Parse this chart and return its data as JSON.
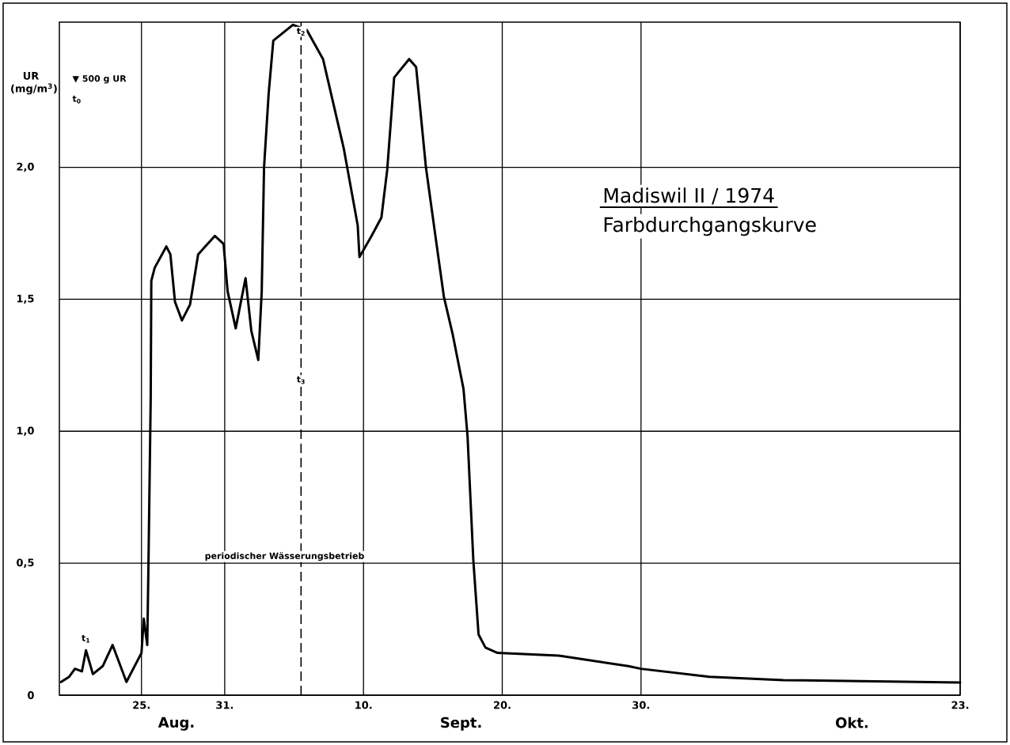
{
  "chart_data": {
    "type": "line",
    "title": "Madiswil II / 1974",
    "subtitle": "Farbdurchgangskurve",
    "ylabel": "UR (mg/m$^{3}$)",
    "x": [
      "1974-08-19T05:00",
      "1974-08-19T19:00",
      "1974-08-20T05:00",
      "1974-08-20T17:00",
      "1974-08-21T00:00",
      "1974-08-21T12:00",
      "1974-08-22T05:00",
      "1974-08-22T22:00",
      "1974-08-23T22:00",
      "1974-08-25T00:00",
      "1974-08-25T04:00",
      "1974-08-25T10:00",
      "1974-08-25T12:00",
      "1974-08-25T16:00",
      "1974-08-25T17:00",
      "1974-08-25T23:00",
      "1974-08-26T19:00",
      "1974-08-27T02:00",
      "1974-08-27T10:00",
      "1974-08-27T22:00",
      "1974-08-28T12:00",
      "1974-08-29T02:00",
      "1974-08-30T07:00",
      "1974-08-30T22:00",
      "1974-08-31T05:00",
      "1974-08-31T19:00",
      "1974-09-01T12:00",
      "1974-09-01T22:00",
      "1974-09-02T10:00",
      "1974-09-02T16:00",
      "1974-09-02T20:00",
      "1974-09-03T04:00",
      "1974-09-03T12:00",
      "1974-09-04T22:00",
      "1974-09-05T22:00",
      "1974-09-07T02:00",
      "1974-09-08T14:00",
      "1974-09-09T14:00",
      "1974-09-09T17:00",
      "1974-09-10T14:00",
      "1974-09-11T07:00",
      "1974-09-11T17:00",
      "1974-09-12T05:00",
      "1974-09-13T07:00",
      "1974-09-13T19:00",
      "1974-09-14T12:00",
      "1974-09-15T05:00",
      "1974-09-15T19:00",
      "1974-09-16T10:00",
      "1974-09-17T05:00",
      "1974-09-17T12:00",
      "1974-09-17T22:00",
      "1974-09-18T07:00",
      "1974-09-18T19:00",
      "1974-09-19T16:00",
      "1974-09-24T02:00",
      "1974-09-29T02:00",
      "1974-09-30T00:00",
      "1974-10-04T22:00",
      "1974-10-10T06:00",
      "1974-10-23T00:00"
    ],
    "series": [
      {
        "color": "#000000",
        "values": [
          0.05,
          0.07,
          0.1,
          0.09,
          0.17,
          0.08,
          0.11,
          0.19,
          0.05,
          0.16,
          0.29,
          0.19,
          0.48,
          1.13,
          1.57,
          1.62,
          1.7,
          1.67,
          1.49,
          1.42,
          1.48,
          1.67,
          1.74,
          1.71,
          1.53,
          1.39,
          1.58,
          1.38,
          1.27,
          1.53,
          2.0,
          2.28,
          2.48,
          2.54,
          2.52,
          2.41,
          2.07,
          1.78,
          1.66,
          1.74,
          1.81,
          1.99,
          2.34,
          2.41,
          2.38,
          2.0,
          1.73,
          1.51,
          1.37,
          1.16,
          0.98,
          0.51,
          0.23,
          0.18,
          0.16,
          0.15,
          0.11,
          0.1,
          0.07,
          0.057,
          0.048
        ]
      }
    ],
    "xlim": [
      "1974-08-19T02:00",
      "1974-10-23T00:00"
    ],
    "ylim": [
      0,
      2.55
    ],
    "xticks": [
      {
        "value": "1974-08-25",
        "label": "25."
      },
      {
        "value": "1974-08-31",
        "label": "31."
      },
      {
        "value": "1974-09-10",
        "label": "10."
      },
      {
        "value": "1974-09-20",
        "label": "20."
      },
      {
        "value": "1974-09-30",
        "label": "30."
      },
      {
        "value": "1974-10-23",
        "label": "23."
      }
    ],
    "yticks": [
      {
        "value": 0,
        "label": "0"
      },
      {
        "value": 0.5,
        "label": "0,5"
      },
      {
        "value": 1.0,
        "label": "1,0"
      },
      {
        "value": 1.5,
        "label": "1,5"
      },
      {
        "value": 2.0,
        "label": "2,0"
      }
    ],
    "ref_lines": [
      {
        "axis": "x",
        "value": "1974-09-05T12:00",
        "line_style": "dashed"
      }
    ],
    "annotations": [
      "▼ 500 g UR",
      "t$_{0}$",
      {
        "text": "t$_{1}$",
        "x": "1974-08-21T00:00",
        "y": 0.17
      },
      {
        "text": "t$_{2}$",
        "x": "1974-09-05T12:00",
        "y": 2.47
      },
      {
        "text": "t$_{3}$",
        "x": "1974-09-05T12:00",
        "y": 1.15
      },
      "periodischer Wässerungsbetrieb",
      "Aug.",
      "Sept.",
      "Okt."
    ],
    "grid": true,
    "marker": "none",
    "line_style": "solid"
  }
}
